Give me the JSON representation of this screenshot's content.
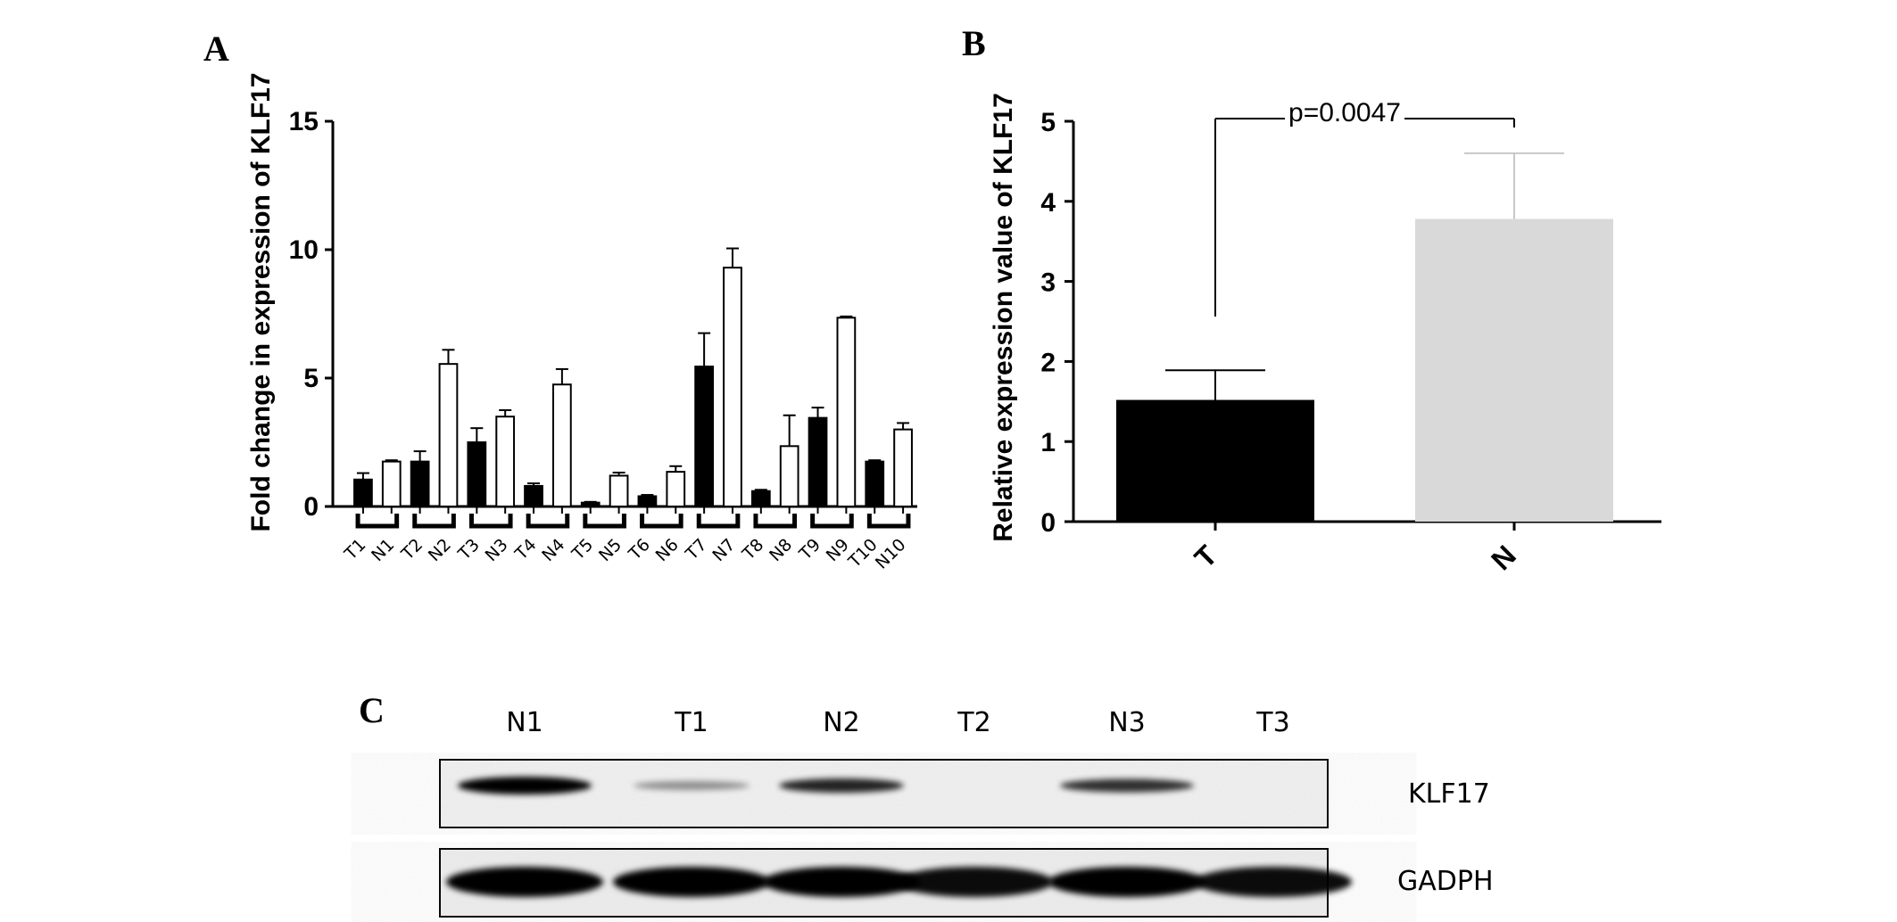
{
  "panels": {
    "a": {
      "letter": "A"
    },
    "b": {
      "letter": "B"
    },
    "c": {
      "letter": "C"
    }
  },
  "chart_data": [
    {
      "panel": "A",
      "type": "bar",
      "ylabel": "Fold change in expression of KLF17",
      "xlabel": "",
      "ylim": [
        0,
        15
      ],
      "yticks": [
        0,
        5,
        10,
        15
      ],
      "grid": false,
      "categories": [
        "T1",
        "N1",
        "T2",
        "N2",
        "T3",
        "N3",
        "T4",
        "N4",
        "T5",
        "N5",
        "T6",
        "N6",
        "T7",
        "N7",
        "T8",
        "N8",
        "T9",
        "N9",
        "T10",
        "N10"
      ],
      "values": [
        1.05,
        1.75,
        1.75,
        5.55,
        2.5,
        3.5,
        0.8,
        4.75,
        0.15,
        1.2,
        0.4,
        1.35,
        5.45,
        9.3,
        0.6,
        2.35,
        3.45,
        7.35,
        1.75,
        3.0
      ],
      "errors": [
        0.25,
        0.05,
        0.4,
        0.55,
        0.55,
        0.25,
        0.1,
        0.6,
        0.03,
        0.12,
        0.05,
        0.22,
        1.3,
        0.75,
        0.05,
        1.2,
        0.4,
        0.05,
        0.05,
        0.25
      ],
      "fills": [
        "#000000",
        "#ffffff",
        "#000000",
        "#ffffff",
        "#000000",
        "#ffffff",
        "#000000",
        "#ffffff",
        "#000000",
        "#ffffff",
        "#000000",
        "#ffffff",
        "#000000",
        "#ffffff",
        "#000000",
        "#ffffff",
        "#000000",
        "#ffffff",
        "#000000",
        "#ffffff"
      ],
      "pairs": 10
    },
    {
      "panel": "B",
      "type": "bar",
      "ylabel": "Relative expression value of KLF17",
      "xlabel": "",
      "ylim": [
        0,
        5
      ],
      "yticks": [
        0,
        1,
        2,
        3,
        4,
        5
      ],
      "grid": false,
      "categories": [
        "T",
        "N"
      ],
      "values": [
        1.52,
        3.78
      ],
      "errors": [
        0.37,
        0.82
      ],
      "colors": [
        "#000000",
        "#d9d9d9"
      ],
      "annotation": "p=0.0047"
    }
  ],
  "western_blot": {
    "lanes": [
      "N1",
      "T1",
      "N2",
      "T2",
      "N3",
      "T3"
    ],
    "proteins": [
      "KLF17",
      "GADPH"
    ],
    "klf17_intensity": [
      1.0,
      0.35,
      0.8,
      0.05,
      0.75,
      0.05
    ],
    "gadph_intensity": [
      1.0,
      1.0,
      1.0,
      0.95,
      1.0,
      0.95
    ]
  }
}
